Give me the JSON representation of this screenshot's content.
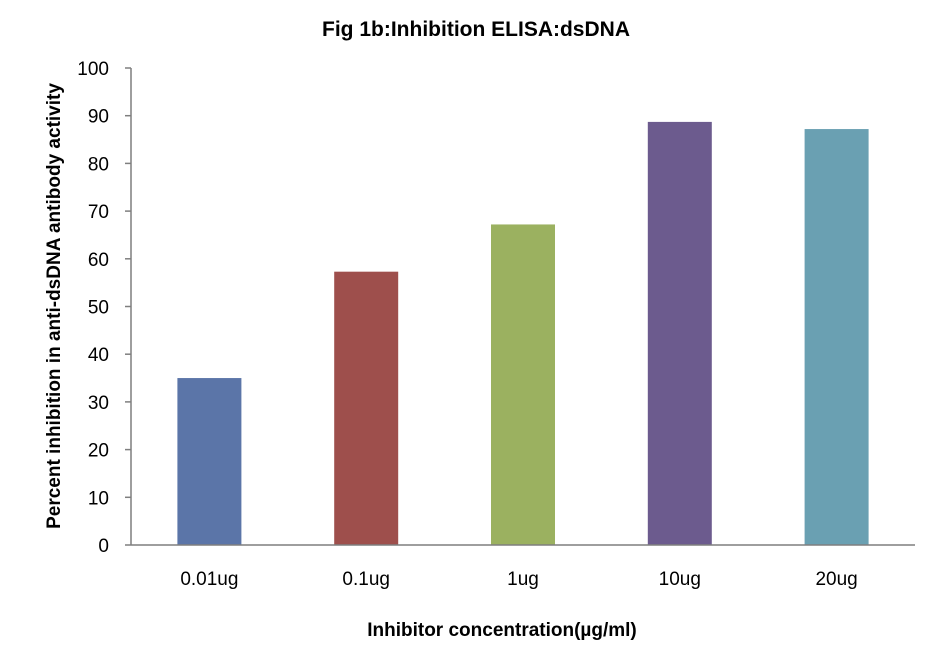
{
  "chart_data": {
    "type": "bar",
    "title": "Fig 1b:Inhibition ELISA:dsDNA",
    "xlabel": "Inhibitor concentration(µg/ml)",
    "ylabel": "Percent inhibition in anti-dsDNA antibody activity",
    "categories": [
      "0.01ug",
      "0.1ug",
      "1ug",
      "10ug",
      "20ug"
    ],
    "values": [
      35,
      57.3,
      67.2,
      88.7,
      87.2
    ],
    "bar_colors": [
      "#5b75a8",
      "#9e4f4c",
      "#9bb160",
      "#6c5b8e",
      "#6aa0b2"
    ],
    "ylim": [
      0,
      100
    ],
    "yticks": [
      0,
      10,
      20,
      30,
      40,
      50,
      60,
      70,
      80,
      90,
      100
    ],
    "grid": false,
    "legend": "none"
  }
}
